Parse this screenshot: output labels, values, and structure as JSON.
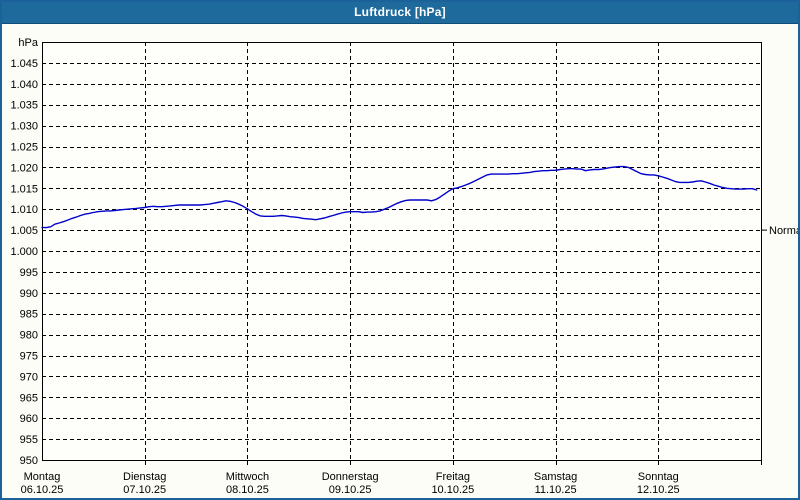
{
  "window": {
    "title": "Luftdruck [hPa]"
  },
  "chart_data": {
    "type": "line",
    "title": "Luftdruck [hPa]",
    "unit_label": "hPa",
    "ylim": [
      950,
      1050
    ],
    "ytick_values": [
      1045,
      1040,
      1035,
      1030,
      1025,
      1020,
      1015,
      1010,
      1005,
      1000,
      995,
      990,
      985,
      980,
      975,
      970,
      965,
      960,
      955,
      950
    ],
    "ytick_labels": [
      "1.045",
      "1.040",
      "1.035",
      "1.030",
      "1.025",
      "1.020",
      "1.015",
      "1.010",
      "1.005",
      "1.000",
      "995",
      "990",
      "985",
      "980",
      "975",
      "970",
      "965",
      "960",
      "955",
      "950"
    ],
    "grid": "dashed",
    "x_hours_total": 168,
    "days": [
      {
        "name": "Montag",
        "date": "06.10.25"
      },
      {
        "name": "Dienstag",
        "date": "07.10.25"
      },
      {
        "name": "Mittwoch",
        "date": "08.10.25"
      },
      {
        "name": "Donnerstag",
        "date": "09.10.25"
      },
      {
        "name": "Freitag",
        "date": "10.10.25"
      },
      {
        "name": "Samstag",
        "date": "11.10.25"
      },
      {
        "name": "Sonntag",
        "date": "12.10.25"
      }
    ],
    "normal_marker": {
      "label": "Normal",
      "value": 1005
    },
    "colors": {
      "line": "#0000CC",
      "grid": "#000000",
      "frame": "#000000",
      "text": "#000000",
      "plot_bg": "#FEFEFB",
      "titlebar": "#1E6A9C",
      "window_border": "#1B629B"
    },
    "series": [
      {
        "name": "Luftdruck",
        "points": [
          [
            0,
            1005.6
          ],
          [
            1,
            1005.6
          ],
          [
            2,
            1005.8
          ],
          [
            3,
            1006.4
          ],
          [
            4,
            1006.7
          ],
          [
            5,
            1007.0
          ],
          [
            6,
            1007.4
          ],
          [
            7,
            1007.8
          ],
          [
            8,
            1008.1
          ],
          [
            9,
            1008.5
          ],
          [
            10,
            1008.8
          ],
          [
            11,
            1009.0
          ],
          [
            12,
            1009.2
          ],
          [
            13,
            1009.4
          ],
          [
            14,
            1009.5
          ],
          [
            15,
            1009.6
          ],
          [
            16,
            1009.6
          ],
          [
            17,
            1009.7
          ],
          [
            18,
            1009.8
          ],
          [
            19,
            1009.9
          ],
          [
            20,
            1010.0
          ],
          [
            21,
            1010.1
          ],
          [
            22,
            1010.2
          ],
          [
            23,
            1010.3
          ],
          [
            24,
            1010.4
          ],
          [
            25,
            1010.6
          ],
          [
            26,
            1010.7
          ],
          [
            27,
            1010.6
          ],
          [
            28,
            1010.6
          ],
          [
            29,
            1010.7
          ],
          [
            30,
            1010.8
          ],
          [
            31,
            1010.9
          ],
          [
            32,
            1011.0
          ],
          [
            33,
            1011.0
          ],
          [
            34,
            1011.0
          ],
          [
            35,
            1011.0
          ],
          [
            36,
            1011.0
          ],
          [
            37,
            1011.0
          ],
          [
            38,
            1011.1
          ],
          [
            39,
            1011.2
          ],
          [
            40,
            1011.4
          ],
          [
            41,
            1011.6
          ],
          [
            42,
            1011.8
          ],
          [
            43,
            1012.0
          ],
          [
            44,
            1011.9
          ],
          [
            45,
            1011.6
          ],
          [
            46,
            1011.2
          ],
          [
            47,
            1010.7
          ],
          [
            48,
            1010.1
          ],
          [
            49,
            1009.4
          ],
          [
            50,
            1008.8
          ],
          [
            51,
            1008.4
          ],
          [
            52,
            1008.3
          ],
          [
            53,
            1008.3
          ],
          [
            54,
            1008.3
          ],
          [
            55,
            1008.4
          ],
          [
            56,
            1008.5
          ],
          [
            57,
            1008.4
          ],
          [
            58,
            1008.2
          ],
          [
            59,
            1008.1
          ],
          [
            60,
            1008.0
          ],
          [
            61,
            1007.8
          ],
          [
            62,
            1007.7
          ],
          [
            63,
            1007.6
          ],
          [
            64,
            1007.5
          ],
          [
            65,
            1007.7
          ],
          [
            66,
            1007.9
          ],
          [
            67,
            1008.2
          ],
          [
            68,
            1008.5
          ],
          [
            69,
            1008.8
          ],
          [
            70,
            1009.1
          ],
          [
            71,
            1009.3
          ],
          [
            72,
            1009.4
          ],
          [
            73,
            1009.4
          ],
          [
            74,
            1009.4
          ],
          [
            75,
            1009.2
          ],
          [
            76,
            1009.3
          ],
          [
            77,
            1009.3
          ],
          [
            78,
            1009.4
          ],
          [
            79,
            1009.6
          ],
          [
            80,
            1010.0
          ],
          [
            81,
            1010.4
          ],
          [
            82,
            1010.9
          ],
          [
            83,
            1011.4
          ],
          [
            84,
            1011.8
          ],
          [
            85,
            1012.1
          ],
          [
            86,
            1012.2
          ],
          [
            87,
            1012.2
          ],
          [
            88,
            1012.2
          ],
          [
            89,
            1012.2
          ],
          [
            90,
            1012.2
          ],
          [
            91,
            1012.0
          ],
          [
            92,
            1012.3
          ],
          [
            93,
            1012.9
          ],
          [
            94,
            1013.6
          ],
          [
            95,
            1014.3
          ],
          [
            96,
            1014.9
          ],
          [
            97,
            1015.1
          ],
          [
            98,
            1015.4
          ],
          [
            99,
            1015.8
          ],
          [
            100,
            1016.2
          ],
          [
            101,
            1016.7
          ],
          [
            102,
            1017.2
          ],
          [
            103,
            1017.7
          ],
          [
            104,
            1018.2
          ],
          [
            105,
            1018.4
          ],
          [
            106,
            1018.4
          ],
          [
            107,
            1018.4
          ],
          [
            108,
            1018.4
          ],
          [
            109,
            1018.4
          ],
          [
            110,
            1018.5
          ],
          [
            111,
            1018.5
          ],
          [
            112,
            1018.6
          ],
          [
            113,
            1018.7
          ],
          [
            114,
            1018.8
          ],
          [
            115,
            1019.0
          ],
          [
            116,
            1019.1
          ],
          [
            117,
            1019.2
          ],
          [
            118,
            1019.2
          ],
          [
            119,
            1019.3
          ],
          [
            120,
            1019.3
          ],
          [
            121,
            1019.5
          ],
          [
            122,
            1019.6
          ],
          [
            123,
            1019.7
          ],
          [
            124,
            1019.7
          ],
          [
            125,
            1019.6
          ],
          [
            126,
            1019.6
          ],
          [
            127,
            1019.2
          ],
          [
            128,
            1019.4
          ],
          [
            129,
            1019.5
          ],
          [
            130,
            1019.5
          ],
          [
            131,
            1019.6
          ],
          [
            132,
            1019.8
          ],
          [
            133,
            1020.0
          ],
          [
            134,
            1020.1
          ],
          [
            135,
            1020.2
          ],
          [
            136,
            1020.2
          ],
          [
            137,
            1020.0
          ],
          [
            138,
            1019.5
          ],
          [
            139,
            1019.0
          ],
          [
            140,
            1018.5
          ],
          [
            141,
            1018.3
          ],
          [
            142,
            1018.2
          ],
          [
            143,
            1018.2
          ],
          [
            144,
            1018.0
          ],
          [
            145,
            1017.7
          ],
          [
            146,
            1017.4
          ],
          [
            147,
            1017.0
          ],
          [
            148,
            1016.6
          ],
          [
            149,
            1016.4
          ],
          [
            150,
            1016.4
          ],
          [
            151,
            1016.4
          ],
          [
            152,
            1016.5
          ],
          [
            153,
            1016.7
          ],
          [
            154,
            1016.8
          ],
          [
            155,
            1016.5
          ],
          [
            156,
            1016.2
          ],
          [
            157,
            1015.8
          ],
          [
            158,
            1015.5
          ],
          [
            159,
            1015.2
          ],
          [
            160,
            1015.0
          ],
          [
            161,
            1014.9
          ],
          [
            162,
            1014.8
          ],
          [
            163,
            1014.8
          ],
          [
            164,
            1014.8
          ],
          [
            165,
            1014.9
          ],
          [
            166,
            1014.9
          ],
          [
            167,
            1014.6
          ]
        ]
      }
    ]
  }
}
